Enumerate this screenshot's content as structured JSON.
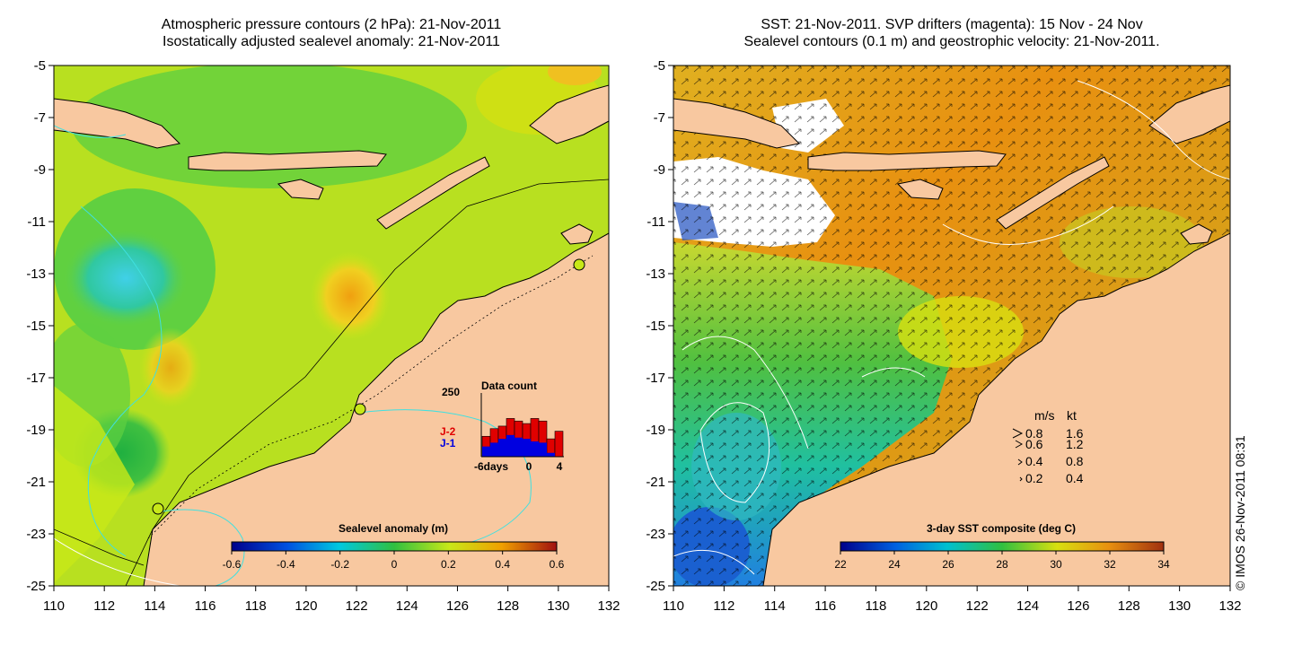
{
  "left_panel": {
    "title_line1": "Atmospheric pressure contours (2 hPa): 21-Nov-2011",
    "title_line2": "Isostatically adjusted sealevel anomaly: 21-Nov-2011",
    "colorbar": {
      "title": "Sealevel anomaly (m)",
      "ticks": [
        "-0.6",
        "-0.4",
        "-0.2",
        "0",
        "0.2",
        "0.4",
        "0.6"
      ]
    },
    "histogram": {
      "title": "Data count",
      "ymax_label": "250",
      "series_labels": [
        {
          "name": "J-2",
          "color": "#e00000"
        },
        {
          "name": "J-1",
          "color": "#0000e0"
        }
      ],
      "x_labels": [
        "-6days",
        "0",
        "4"
      ],
      "j1_counts": [
        40,
        55,
        70,
        85,
        75,
        70,
        60,
        55,
        15,
        0
      ],
      "j2_counts": [
        80,
        110,
        120,
        150,
        140,
        130,
        150,
        140,
        70,
        100
      ]
    }
  },
  "right_panel": {
    "title_line1": "SST: 21-Nov-2011. SVP drifters (magenta): 15 Nov - 24 Nov",
    "title_line2": "Sealevel contours (0.1 m) and geostrophic velocity: 21-Nov-2011.",
    "colorbar": {
      "title": "3-day SST composite (deg C)",
      "ticks": [
        "22",
        "24",
        "26",
        "28",
        "30",
        "32",
        "34"
      ]
    },
    "speed_legend": {
      "header_ms": "m/s",
      "header_kt": "kt",
      "rows": [
        {
          "ms": "0.8",
          "kt": "1.6"
        },
        {
          "ms": "0.6",
          "kt": "1.2"
        },
        {
          "ms": "0.4",
          "kt": "0.8"
        },
        {
          "ms": "0.2",
          "kt": "0.4"
        }
      ]
    }
  },
  "axes": {
    "x_ticks": [
      "110",
      "112",
      "114",
      "116",
      "118",
      "120",
      "122",
      "124",
      "126",
      "128",
      "130",
      "132"
    ],
    "y_ticks": [
      "-5",
      "-7",
      "-9",
      "-11",
      "-13",
      "-15",
      "-17",
      "-19",
      "-21",
      "-23",
      "-25"
    ]
  },
  "credit": "© IMOS 26-Nov-2011 08:31",
  "colors": {
    "land": "#f8c8a0",
    "contour_cyan": "#40e0e0",
    "ssh_green": "#44cc44",
    "ssh_yellow_green": "#c8e818"
  }
}
